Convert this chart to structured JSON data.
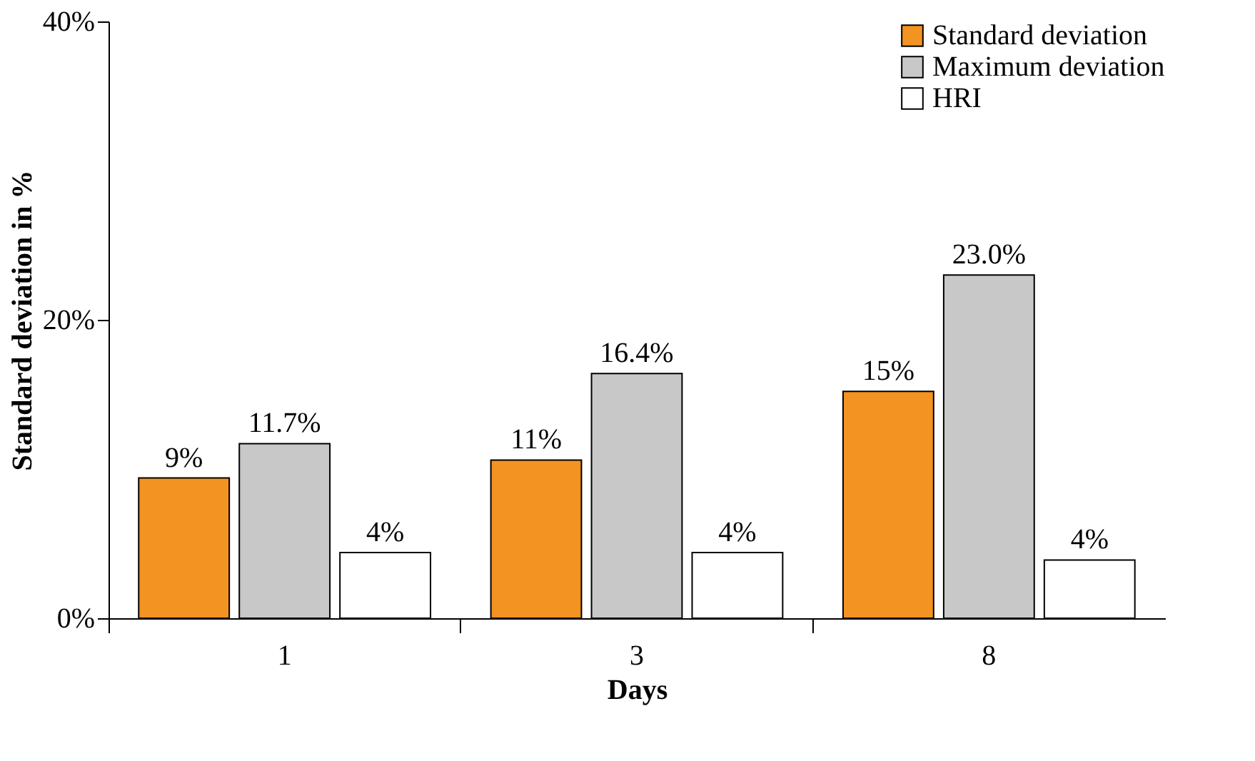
{
  "chart_data": {
    "type": "bar",
    "xlabel": "Days",
    "ylabel": "Standard deviation in %",
    "categories": [
      "1",
      "3",
      "8"
    ],
    "series": [
      {
        "name": "Standard deviation",
        "color": "#f39321",
        "values": [
          9.4,
          10.6,
          15.2
        ],
        "value_labels": [
          "9%",
          "11%",
          "15%"
        ]
      },
      {
        "name": "Maximum deviation",
        "color": "#c8c8c8",
        "values": [
          11.7,
          16.4,
          23.0
        ],
        "value_labels": [
          "11.7%",
          "16.4%",
          "23.0%"
        ]
      },
      {
        "name": "HRI",
        "color": "#ffffff",
        "values": [
          4.4,
          4.4,
          3.9
        ],
        "value_labels": [
          "4%",
          "4%",
          "4%"
        ]
      }
    ],
    "ylim": [
      0,
      40
    ],
    "yticks": [
      {
        "value": 0,
        "label": "0%"
      },
      {
        "value": 20,
        "label": "20%"
      },
      {
        "value": 40,
        "label": "40%"
      }
    ],
    "grid": false,
    "legend": "top right"
  }
}
